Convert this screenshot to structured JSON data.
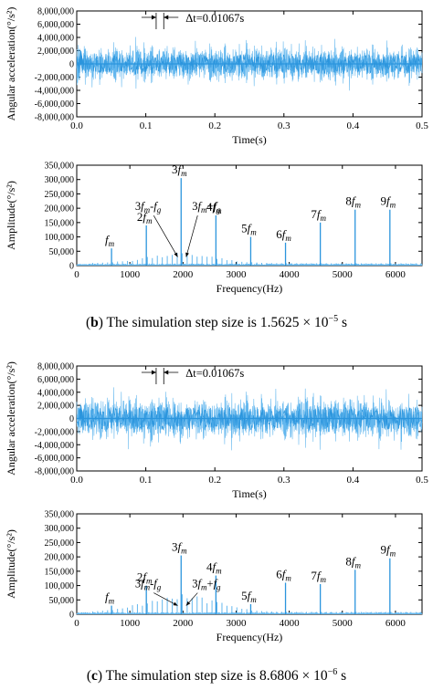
{
  "colors": {
    "signal": "#2b95dd",
    "signal_light": "#63b7ee",
    "axis": "#000000",
    "background": "#ffffff"
  },
  "figure_b": {
    "caption_letter": "b",
    "caption_text": " The simulation step size is 1.5625 × 10",
    "caption_exp": "−5",
    "caption_unit": " s"
  },
  "figure_c": {
    "caption_letter": "c",
    "caption_text": " The simulation step size is 8.6806 × 10",
    "caption_exp": "−6",
    "caption_unit": " s"
  },
  "chart_data": [
    {
      "id": "b-time",
      "type": "line",
      "xlabel": "Time(s)",
      "ylabel": "Angular acceleration(°/s²)",
      "xlim": [
        0,
        0.5
      ],
      "ylim": [
        -8000000,
        8000000
      ],
      "xticks": [
        0.0,
        0.1,
        0.2,
        0.3,
        0.4,
        0.5
      ],
      "xtick_labels": [
        "0.0",
        "0.1",
        "0.2",
        "0.3",
        "0.4",
        "0.5"
      ],
      "yticks": [
        8000000,
        6000000,
        4000000,
        2000000,
        0,
        -2000000,
        -4000000,
        -6000000,
        -8000000
      ],
      "ytick_labels": [
        "8,000,000",
        "6,000,000",
        "4,000,000",
        "2,000,000",
        "0",
        "-2,000,000",
        "-4,000,000",
        "-6,000,000",
        "-8,000,000"
      ],
      "annotation": "Δt=0.01067s",
      "annotation_interval": [
        0.115,
        0.126
      ],
      "envelope": 4200000,
      "period": 0.01067,
      "seed": 7
    },
    {
      "id": "b-freq",
      "type": "line",
      "xlabel": "Frequency(Hz)",
      "ylabel": "Amplitude(°/s²)",
      "xlim": [
        0,
        6500
      ],
      "ylim": [
        0,
        350000
      ],
      "xticks": [
        0,
        1000,
        2000,
        3000,
        4000,
        5000,
        6000
      ],
      "xtick_labels": [
        "0",
        "1000",
        "2000",
        "3000",
        "4000",
        "5000",
        "6000"
      ],
      "yticks": [
        0,
        50000,
        100000,
        150000,
        200000,
        250000,
        300000,
        350000
      ],
      "ytick_labels": [
        "0",
        "50,000",
        "100,000",
        "150,000",
        "200,000",
        "250,000",
        "300,000",
        "350,000"
      ],
      "peaks": [
        {
          "f": 655,
          "amp": 60000,
          "label": "f",
          "sub": "m",
          "pre": ""
        },
        {
          "f": 1310,
          "amp": 140000,
          "label": "f",
          "sub": "m",
          "pre": "2"
        },
        {
          "f": 1965,
          "amp": 305000,
          "label": "f",
          "sub": "m",
          "pre": "3"
        },
        {
          "f": 2620,
          "amp": 175000,
          "label": "f",
          "sub": "m",
          "pre": "4"
        },
        {
          "f": 3275,
          "amp": 100000,
          "label": "f",
          "sub": "m",
          "pre": "5"
        },
        {
          "f": 3930,
          "amp": 80000,
          "label": "f",
          "sub": "m",
          "pre": "6"
        },
        {
          "f": 4585,
          "amp": 150000,
          "label": "f",
          "sub": "m",
          "pre": "7"
        },
        {
          "f": 5240,
          "amp": 195000,
          "label": "f",
          "sub": "m",
          "pre": "8"
        },
        {
          "f": 5895,
          "amp": 195000,
          "label": "f",
          "sub": "m",
          "pre": "9"
        }
      ],
      "sidebands": [
        {
          "label_html": "3<i>f</i><sub>m</sub>-<i>f</i><sub>g</sub>",
          "target_f": 1900,
          "target_amp": 30000
        },
        {
          "label_html": "3<i>f</i><sub>m</sub>+<i>f</i><sub>g</sub>",
          "target_f": 2060,
          "target_amp": 30000
        }
      ],
      "sideband_spacing": 93.6,
      "sideband_level": 45000,
      "seed": 11
    },
    {
      "id": "c-time",
      "type": "line",
      "xlabel": "Time(s)",
      "ylabel": "Angular acceleration(°/s²)",
      "xlim": [
        0,
        0.5
      ],
      "ylim": [
        -8000000,
        8000000
      ],
      "xticks": [
        0.0,
        0.1,
        0.2,
        0.3,
        0.4,
        0.5
      ],
      "xtick_labels": [
        "0.0",
        "0.1",
        "0.2",
        "0.3",
        "0.4",
        "0.5"
      ],
      "yticks": [
        8000000,
        6000000,
        4000000,
        2000000,
        0,
        -2000000,
        -4000000,
        -6000000,
        -8000000
      ],
      "ytick_labels": [
        "8,000,000",
        "6,000,000",
        "4,000,000",
        "2,000,000",
        "0",
        "-2,000,000",
        "-4,000,000",
        "-6,000,000",
        "-8,000,000"
      ],
      "annotation": "Δt=0.01067s",
      "annotation_interval": [
        0.115,
        0.126
      ],
      "envelope": 5000000,
      "period": 0.01067,
      "seed": 23
    },
    {
      "id": "c-freq",
      "type": "line",
      "xlabel": "Frequency(Hz)",
      "ylabel": "Amplitude(°/s²)",
      "xlim": [
        0,
        6500
      ],
      "ylim": [
        0,
        350000
      ],
      "xticks": [
        0,
        1000,
        2000,
        3000,
        4000,
        5000,
        6000
      ],
      "xtick_labels": [
        "0",
        "1000",
        "2000",
        "3000",
        "4000",
        "5000",
        "6000"
      ],
      "yticks": [
        0,
        50000,
        100000,
        150000,
        200000,
        250000,
        300000,
        350000
      ],
      "ytick_labels": [
        "0",
        "50,000",
        "100,000",
        "150,000",
        "200,000",
        "250,000",
        "300,000",
        "350,000"
      ],
      "peaks": [
        {
          "f": 655,
          "amp": 30000,
          "label": "f",
          "sub": "m",
          "pre": ""
        },
        {
          "f": 1310,
          "amp": 100000,
          "label": "f",
          "sub": "m",
          "pre": "2"
        },
        {
          "f": 1965,
          "amp": 205000,
          "label": "f",
          "sub": "m",
          "pre": "3"
        },
        {
          "f": 2620,
          "amp": 135000,
          "label": "f",
          "sub": "m",
          "pre": "4"
        },
        {
          "f": 3275,
          "amp": 35000,
          "label": "f",
          "sub": "m",
          "pre": "5"
        },
        {
          "f": 3930,
          "amp": 110000,
          "label": "f",
          "sub": "m",
          "pre": "6"
        },
        {
          "f": 4585,
          "amp": 105000,
          "label": "f",
          "sub": "m",
          "pre": "7"
        },
        {
          "f": 5240,
          "amp": 155000,
          "label": "f",
          "sub": "m",
          "pre": "8"
        },
        {
          "f": 5895,
          "amp": 195000,
          "label": "f",
          "sub": "m",
          "pre": "9"
        }
      ],
      "sidebands": [
        {
          "label_html": "3<i>f</i><sub>m</sub>-<i>f</i><sub>g</sub>",
          "target_f": 1900,
          "target_amp": 30000
        },
        {
          "label_html": "3<i>f</i><sub>m</sub>+<i>f</i><sub>g</sub>",
          "target_f": 2060,
          "target_amp": 30000
        }
      ],
      "sideband_spacing": 93.6,
      "sideband_level": 75000,
      "seed": 31
    }
  ]
}
